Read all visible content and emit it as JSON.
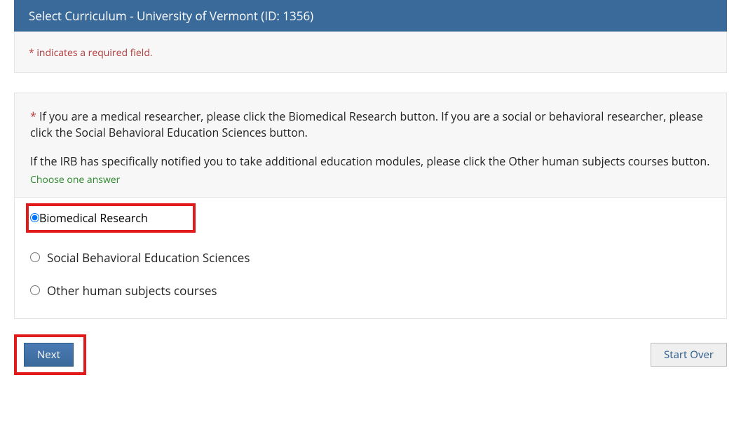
{
  "header": {
    "title": "Select Curriculum - University of Vermont (ID: 1356)",
    "bg_color": "#3a6a9a",
    "text_color": "#ffffff"
  },
  "notice": {
    "text": "* indicates a required field.",
    "color": "#b33a3a"
  },
  "question": {
    "asterisk": "*",
    "para1": "If you are a medical researcher, please click the Biomedical Research button. If you are a social or behavioral researcher, please click the Social Behavioral Education Sciences button.",
    "para2": "If the IRB has specifically notified you to take additional education modules, please click the Other human subjects courses button.",
    "hint": "Choose one answer",
    "hint_color": "#2a8a2a"
  },
  "options": [
    {
      "label": "Biomedical Research",
      "selected": true,
      "highlighted": true
    },
    {
      "label": "Social Behavioral Education Sciences",
      "selected": false,
      "highlighted": false
    },
    {
      "label": "Other human subjects courses",
      "selected": false,
      "highlighted": false
    }
  ],
  "buttons": {
    "next": "Next",
    "start_over": "Start Over"
  },
  "highlight_color": "#e11b1b"
}
